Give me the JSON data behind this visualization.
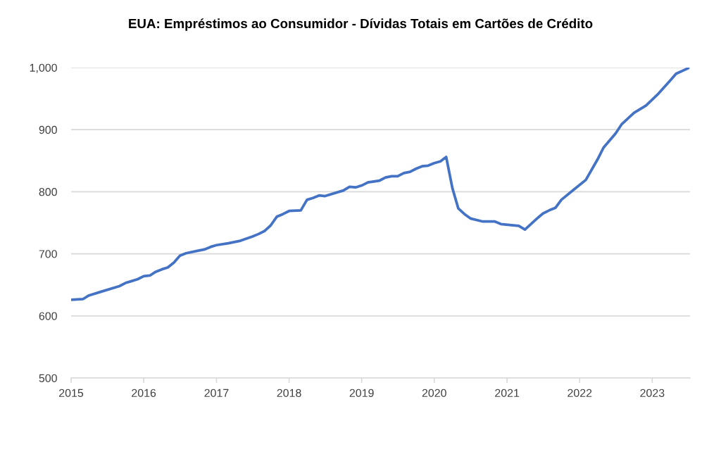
{
  "chart_data": {
    "type": "line",
    "title": "EUA: Empréstimos ao Consumidor - Dívidas Totais em Cartões de Crédito",
    "x": [
      "2015-01",
      "2015-03",
      "2015-04",
      "2015-06",
      "2015-09",
      "2015-10",
      "2015-11",
      "2015-12",
      "2016-01",
      "2016-02",
      "2016-03",
      "2016-04",
      "2016-05",
      "2016-06",
      "2016-07",
      "2016-08",
      "2016-10",
      "2016-11",
      "2016-12",
      "2017-01",
      "2017-03",
      "2017-05",
      "2017-07",
      "2017-08",
      "2017-09",
      "2017-10",
      "2017-11",
      "2017-12",
      "2018-01",
      "2018-03",
      "2018-04",
      "2018-05",
      "2018-06",
      "2018-07",
      "2018-10",
      "2018-11",
      "2018-12",
      "2019-01",
      "2019-02",
      "2019-04",
      "2019-05",
      "2019-06",
      "2019-07",
      "2019-08",
      "2019-09",
      "2019-10",
      "2019-11",
      "2019-12",
      "2020-01",
      "2020-02",
      "2020-03",
      "2020-04",
      "2020-05",
      "2020-06",
      "2020-07",
      "2020-09",
      "2020-11",
      "2020-12",
      "2021-02",
      "2021-03",
      "2021-04",
      "2021-06",
      "2021-07",
      "2021-08",
      "2021-09",
      "2021-10",
      "2021-12",
      "2022-02",
      "2022-04",
      "2022-05",
      "2022-07",
      "2022-08",
      "2022-10",
      "2022-12",
      "2023-02",
      "2023-04",
      "2023-05",
      "2023-07"
    ],
    "values": [
      626,
      627,
      633,
      639,
      648,
      653,
      656,
      659,
      664,
      665,
      671,
      675,
      678,
      686,
      697,
      701,
      705,
      707,
      711,
      714,
      717,
      721,
      728,
      732,
      737,
      746,
      760,
      764,
      769,
      770,
      787,
      790,
      794,
      793,
      802,
      808,
      807,
      810,
      815,
      818,
      823,
      825,
      825,
      830,
      832,
      837,
      841,
      842,
      846,
      849,
      856,
      806,
      773,
      764,
      757,
      752,
      752,
      748,
      746,
      745,
      739,
      757,
      765,
      770,
      774,
      787,
      803,
      819,
      852,
      871,
      894,
      909,
      927,
      939,
      958,
      979,
      990,
      999
    ],
    "color": "#4472c4",
    "xlim": [
      "2015-01-01",
      "2023-07-10"
    ],
    "xticks": [
      "2015",
      "2016",
      "2017",
      "2018",
      "2019",
      "2020",
      "2021",
      "2022",
      "2023"
    ],
    "ylim": [
      500,
      1000
    ],
    "yticks": [
      500,
      600,
      700,
      800,
      900,
      {
        "value": 1000,
        "label": "1,000"
      }
    ],
    "grid": "y"
  }
}
